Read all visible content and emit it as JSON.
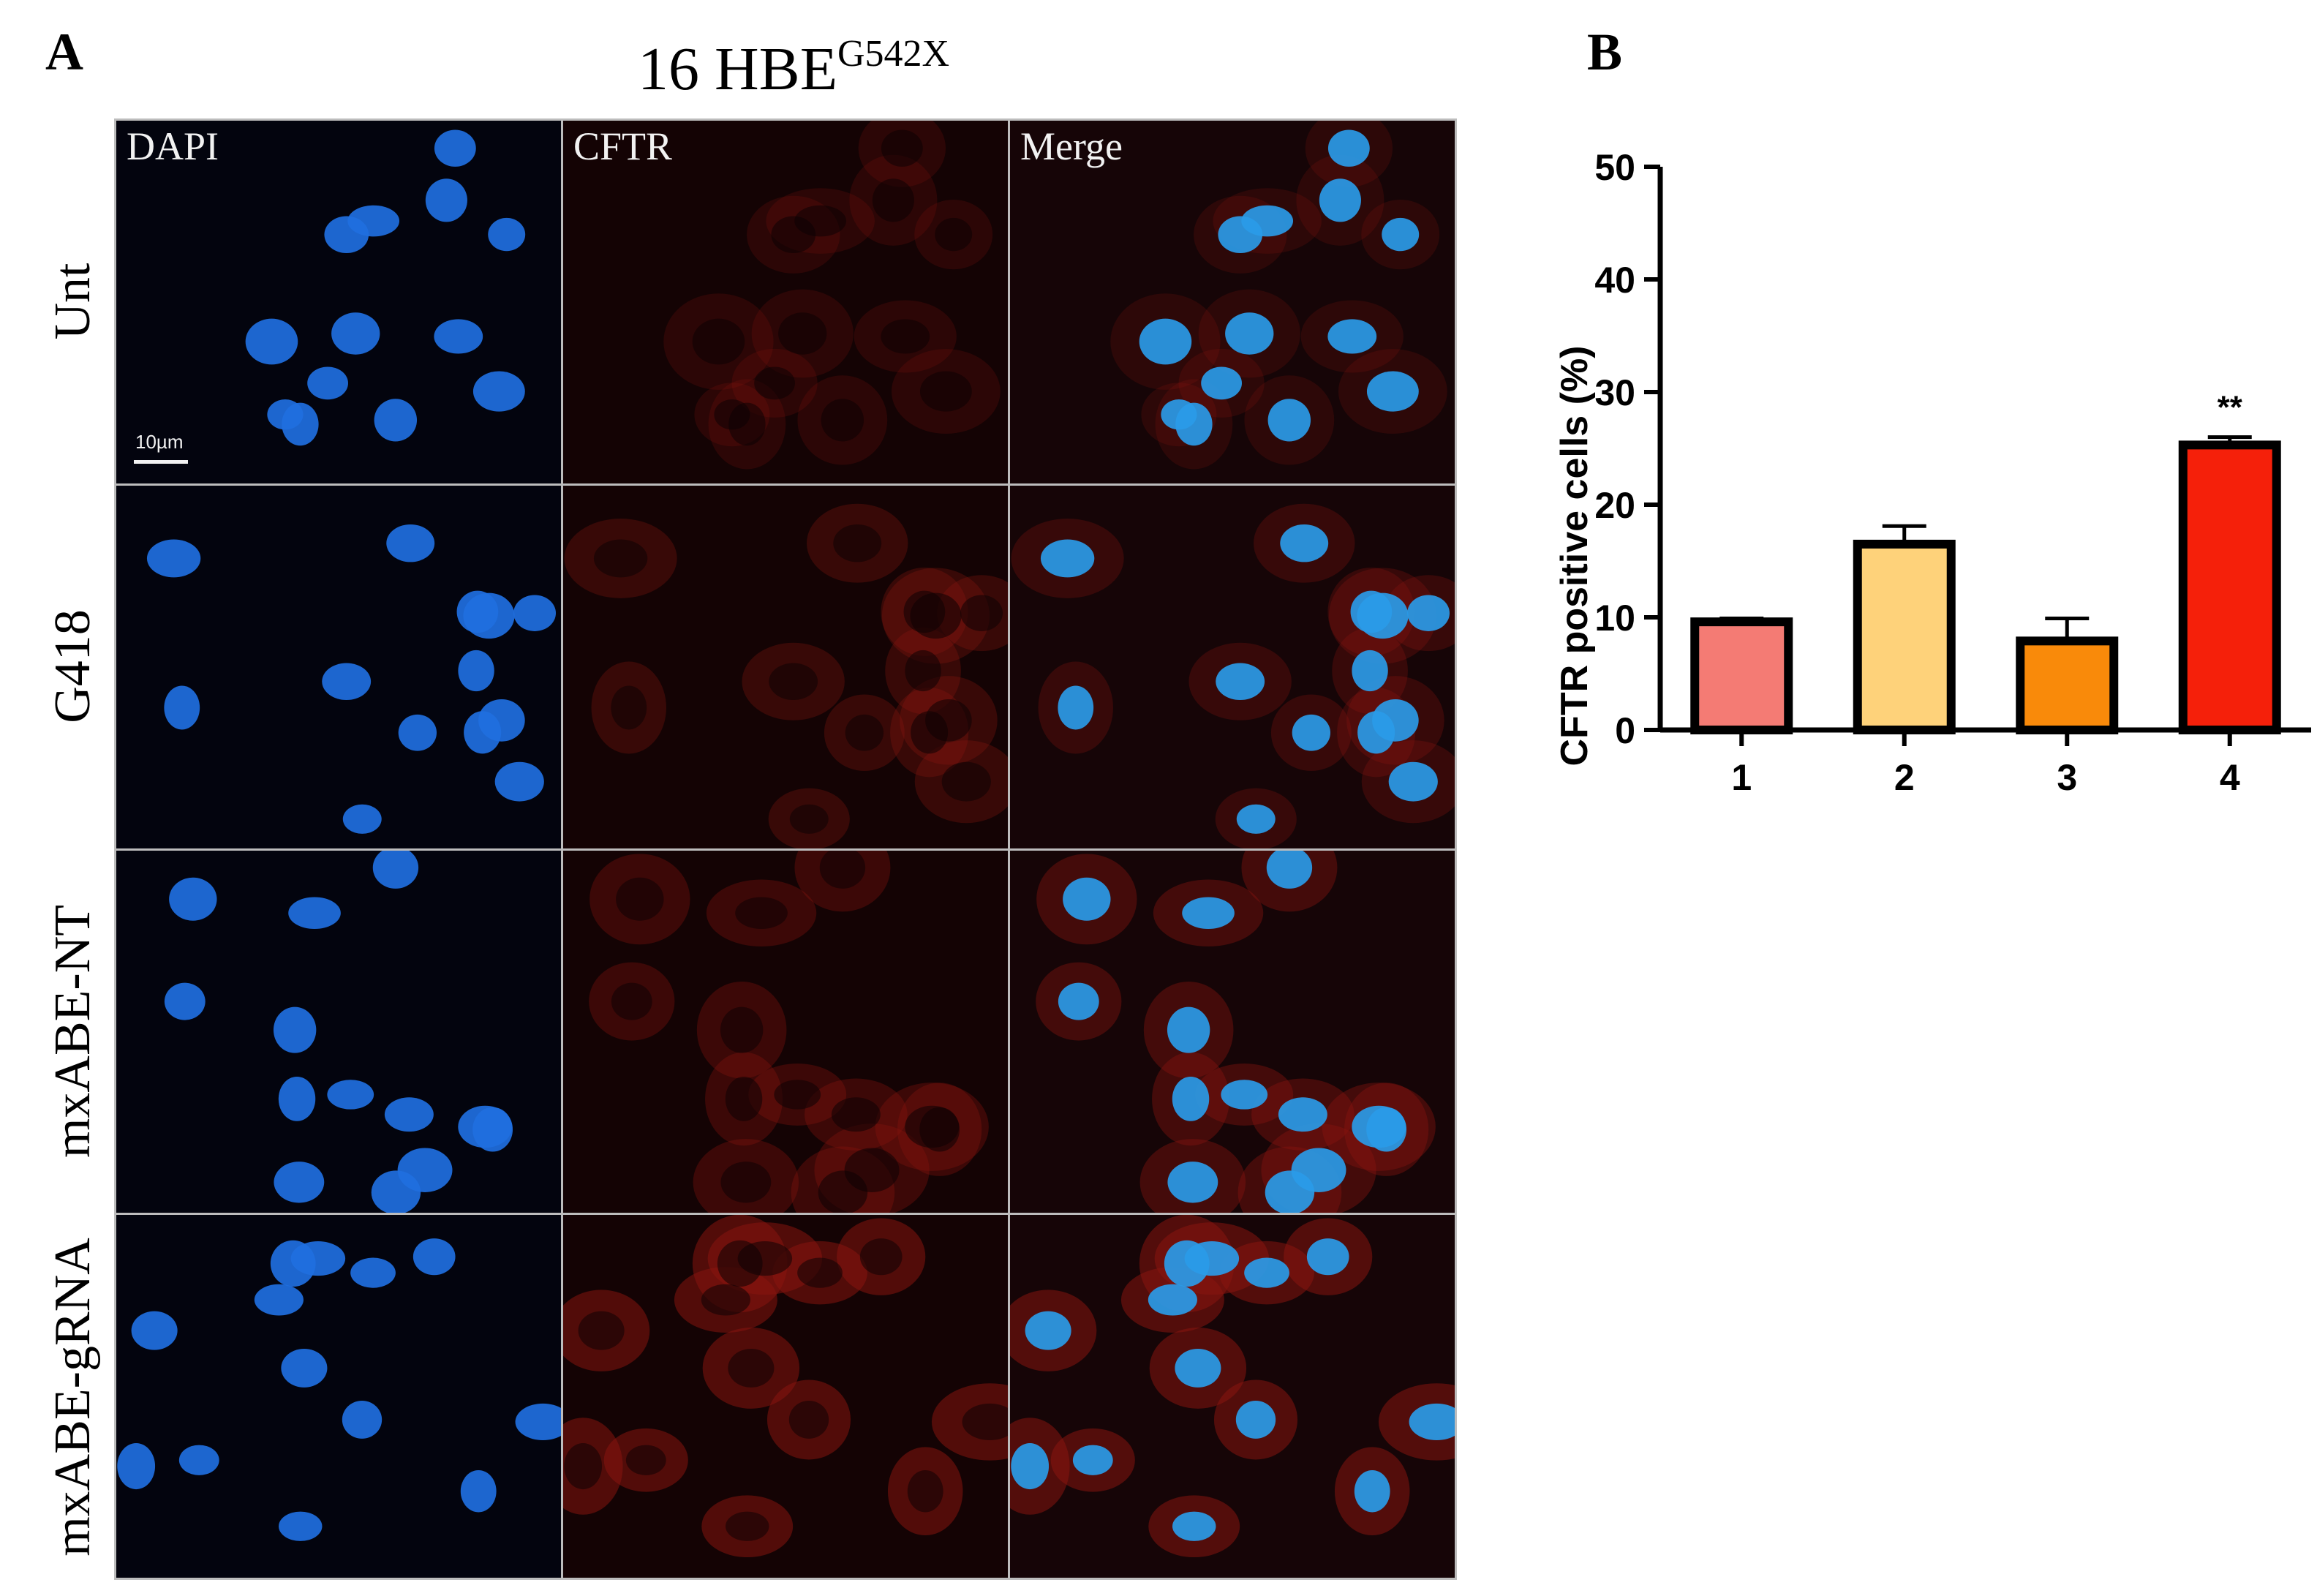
{
  "panels": {
    "a_label": "A",
    "b_label": "B"
  },
  "figure": {
    "title_main": "16 HBE",
    "title_sup": "G542X",
    "columns": [
      "DAPI",
      "CFTR",
      "Merge"
    ],
    "rows": [
      "Unt",
      "G418",
      "mxABE-NT",
      "mxABE-gRNA"
    ],
    "scale_bar_label": "10µm",
    "colors": {
      "dapi": "#1f6fe0",
      "merge_nuclei": "#2a9be8",
      "cftr": "#8a1510"
    }
  },
  "chart_data": {
    "type": "bar",
    "categories": [
      "1",
      "2",
      "3",
      "4"
    ],
    "values": [
      9.6,
      16.5,
      7.9,
      25.3
    ],
    "errors": [
      0.3,
      1.6,
      2.0,
      0.7
    ],
    "colors": [
      "#f47b74",
      "#fed27a",
      "#f98a0a",
      "#f5200a"
    ],
    "annotations": [
      "",
      "",
      "",
      "**"
    ],
    "ylabel": "CFTR positive cells (%)",
    "xlabel": "",
    "ylim": [
      0,
      50
    ],
    "yticks": [
      0,
      10,
      20,
      30,
      40,
      50
    ],
    "grid": false
  }
}
